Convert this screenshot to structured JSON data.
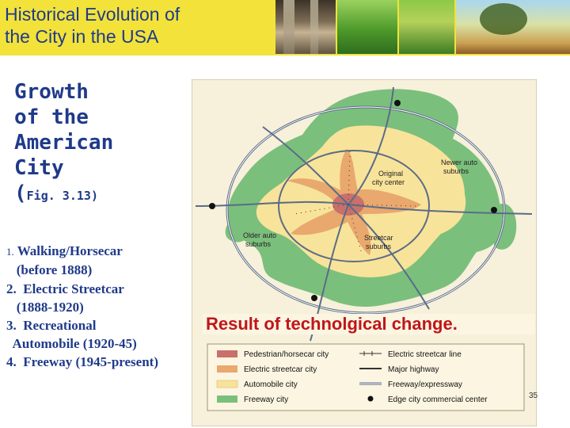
{
  "header": {
    "title_line1": "Historical Evolution of",
    "title_line2": "the City in the USA"
  },
  "growth": {
    "line1": "Growth",
    "line2": "of the",
    "line3": "American",
    "line4": "City",
    "fig_prefix": "(",
    "fig_ref": "Fig. 3.13",
    "fig_suffix": ")"
  },
  "steps": [
    {
      "num": "1.",
      "text": " Walking/Horsecar"
    },
    {
      "num": "",
      "text": "   (before 1888)"
    },
    {
      "num": "2.",
      "text": "  Electric Streetcar"
    },
    {
      "num": "",
      "text": "   (1888-1920)"
    },
    {
      "num": "3.",
      "text": "  Recreational"
    },
    {
      "num": "",
      "text": "  Automobile (1920-45)"
    },
    {
      "num": "4.",
      "text": "  Freeway (1945-present)"
    }
  ],
  "map": {
    "labels": {
      "original": [
        "Original",
        "city center"
      ],
      "newer": [
        "Newer auto",
        "suburbs"
      ],
      "older": [
        "Older auto",
        "suburbs"
      ],
      "streetcar": [
        "Streetcar",
        "suburbs"
      ]
    },
    "colors": {
      "background": "#f7f0da",
      "pedestrian": "#c9706a",
      "streetcar": "#e8a86e",
      "automobile": "#f8e39a",
      "freeway": "#7bbf7c",
      "line": "#5a6c87"
    }
  },
  "caption": "Result of technolgical change.",
  "legend": {
    "left": [
      "Pedestrian/horsecar city",
      "Electric streetcar city",
      "Automobile city",
      "Freeway city"
    ],
    "right": [
      "Electric streetcar line",
      "Major highway",
      "Freeway/expressway",
      "Edge city commercial center"
    ]
  },
  "page_number": "35"
}
